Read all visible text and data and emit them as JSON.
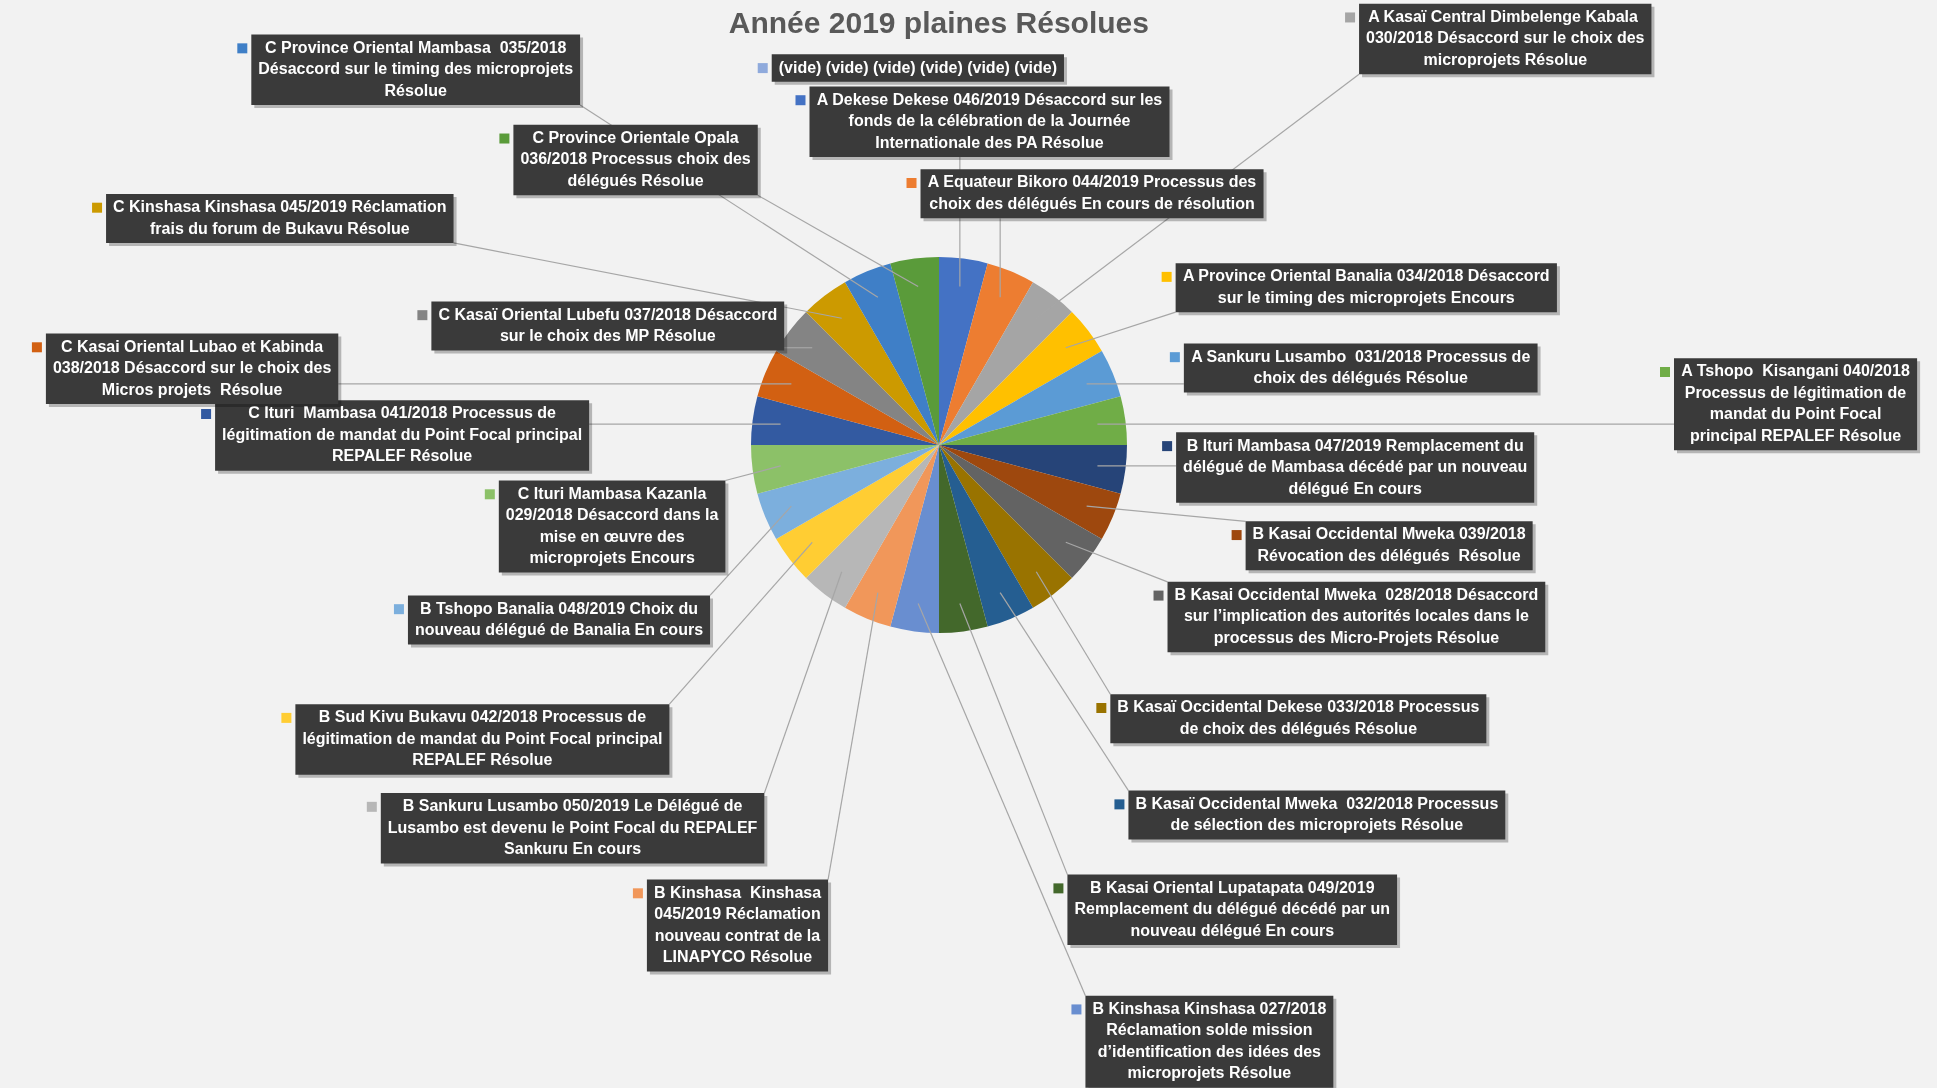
{
  "chart_data": {
    "type": "pie",
    "title": "Année 2019 plaines Résolues",
    "legend": "right",
    "categories": [
      "A Dekese Dekese 046/2019 Désaccord sur les fonds de la célébration de la Journée Internationale des PA Résolue",
      "A Equateur Bikoro 044/2019 Processus des choix des délégués En cours de résolution",
      "A Kasaï Central Dimbelenge Kabala  030/2018 Désaccord sur le choix des microprojets Résolue",
      "A Province Oriental Banalia 034/2018 Désaccord sur le timing des microprojets Encours",
      "A Sankuru Lusambo  031/2018 Processus de choix des délégués Résolue",
      "A Tshopo  Kisangani 040/2018 Processus de légitimation de mandat du Point Focal principal REPALEF Résolue",
      "B Ituri Mambasa 047/2019 Remplacement du délégué de Mambasa décédé par un nouveau délégué En cours",
      "B Kasai Occidental Mweka 039/2018 Révocation des délégués  Résolue",
      "B Kasai Occidental Mweka  028/2018 Désaccord sur l’implication des autorités locales dans le processus des Micro-Projets Résolue",
      "B Kasaï Occidental Dekese 033/2018 Processus de choix des délégués Résolue",
      "B Kasaï Occidental Mweka  032/2018 Processus de sélection des microprojets Résolue",
      "B Kasai Oriental Lupatapata 049/2019 Remplacement du délégué décédé par un nouveau délégué En cours",
      "B Kinshasa Kinshasa 027/2018 Réclamation solde mission d’identification des idées des microprojets Résolue",
      "B Kinshasa  Kinshasa 045/2019 Réclamation nouveau contrat de la LINAPYCO Résolue",
      "B Sankuru Lusambo 050/2019 Le Délégué de Lusambo est devenu le Point Focal du REPALEF Sankuru En cours",
      "B Sud Kivu Bukavu 042/2018 Processus de légitimation de mandat du Point Focal principal REPALEF Résolue",
      "B Tshopo Banalia 048/2019 Choix du nouveau délégué de Banalia En cours",
      "C Ituri Mambasa Kazanla 029/2018 Désaccord dans la mise en œuvre des microprojets Encours",
      "C Ituri  Mambasa 041/2018 Processus de légitimation de mandat du Point Focal principal REPALEF Résolue",
      "C Kasai Oriental Lubao et Kabinda 038/2018 Désaccord sur le choix des Micros projets  Résolue",
      "C Kasaï Oriental Lubefu 037/2018 Désaccord sur le choix des MP Résolue",
      "C Kinshasa Kinshasa 045/2019 Réclamation frais du forum de Bukavu Résolue",
      "C Province Oriental Mambasa  035/2018 Désaccord sur le timing des microprojets Résolue",
      "C Province Orientale Opala 036/2018 Processus choix des délégués Résolue",
      "(vide) (vide) (vide) (vide) (vide) (vide)"
    ],
    "values": [
      4.1667,
      4.1667,
      4.1667,
      4.1667,
      4.1667,
      4.1667,
      4.1667,
      4.1667,
      4.1667,
      4.1667,
      4.1667,
      4.1667,
      4.1667,
      4.1667,
      4.1667,
      4.1667,
      4.1667,
      4.1667,
      4.1667,
      4.1667,
      4.1667,
      4.1667,
      4.1667,
      4.1667,
      0
    ],
    "colors": [
      "#4472c4",
      "#ed7d31",
      "#a5a5a5",
      "#ffc000",
      "#5b9bd5",
      "#70ad47",
      "#264478",
      "#9e480e",
      "#636363",
      "#997300",
      "#255e91",
      "#43682b",
      "#698ed0",
      "#f1975a",
      "#b7b7b7",
      "#ffcd33",
      "#7cafdd",
      "#8cc168",
      "#335aa1",
      "#d26012",
      "#848484",
      "#cc9a00",
      "#3f7fc7",
      "#5a9b3a",
      "#8faadc"
    ]
  }
}
